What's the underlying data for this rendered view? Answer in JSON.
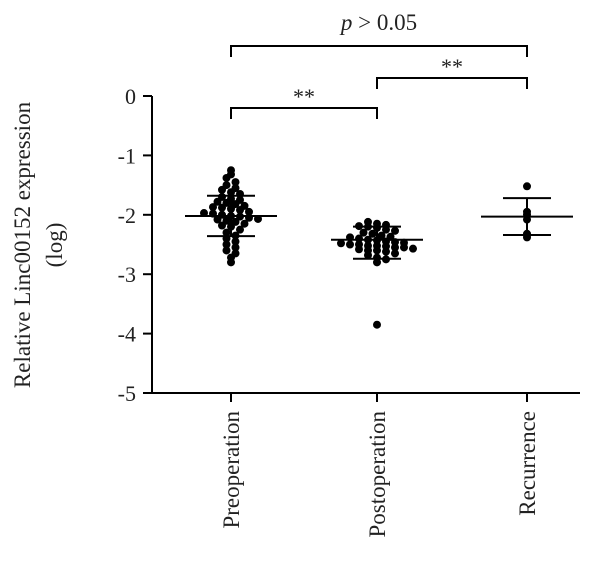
{
  "chart_data": {
    "type": "scatter",
    "ylabel_line1": "Relative Linc00152 expression",
    "ylabel_line2": "(log)",
    "ylim": [
      -5,
      0
    ],
    "yticks": [
      0,
      -1,
      -2,
      -3,
      -4,
      -5
    ],
    "ytick_labels": [
      "0",
      "-1",
      "-2",
      "-3",
      "-4",
      "-5"
    ],
    "categories": [
      "Preoperation",
      "Postoperation",
      "Recurrence"
    ],
    "groups": [
      {
        "category": "Preoperation",
        "mean": -2.02,
        "sd_upper": -1.68,
        "sd_lower": -2.36,
        "points": [
          -1.25,
          -1.32,
          -1.38,
          -1.45,
          -1.5,
          -1.55,
          -1.58,
          -1.62,
          -1.65,
          -1.7,
          -1.73,
          -1.75,
          -1.78,
          -1.8,
          -1.82,
          -1.85,
          -1.87,
          -1.88,
          -1.9,
          -1.92,
          -1.95,
          -1.97,
          -1.98,
          -2.0,
          -2.02,
          -2.03,
          -2.05,
          -2.07,
          -2.08,
          -2.1,
          -2.12,
          -2.15,
          -2.18,
          -2.2,
          -2.25,
          -2.3,
          -2.35,
          -2.4,
          -2.45,
          -2.5,
          -2.55,
          -2.6,
          -2.65,
          -2.72,
          -2.8
        ]
      },
      {
        "category": "Postoperation",
        "mean": -2.42,
        "sd_upper": -2.2,
        "sd_lower": -2.74,
        "points": [
          -2.12,
          -2.15,
          -2.17,
          -2.19,
          -2.2,
          -2.22,
          -2.25,
          -2.27,
          -2.3,
          -2.32,
          -2.35,
          -2.37,
          -2.38,
          -2.4,
          -2.42,
          -2.43,
          -2.45,
          -2.46,
          -2.47,
          -2.48,
          -2.5,
          -2.5,
          -2.52,
          -2.52,
          -2.53,
          -2.55,
          -2.55,
          -2.57,
          -2.58,
          -2.6,
          -2.6,
          -2.62,
          -2.65,
          -2.68,
          -2.72,
          -2.75,
          -2.8,
          -3.85
        ]
      },
      {
        "category": "Recurrence",
        "mean": -2.03,
        "sd_upper": -1.72,
        "sd_lower": -2.34,
        "points": [
          -1.52,
          -1.95,
          -2.0,
          -2.08,
          -2.32,
          -2.38
        ]
      }
    ],
    "annotations": [
      {
        "from": "Preoperation",
        "to": "Recurrence",
        "label_italic": "p",
        "label": " > 0.05"
      },
      {
        "from": "Preoperation",
        "to": "Postoperation",
        "label": "**"
      },
      {
        "from": "Postoperation",
        "to": "Recurrence",
        "label": "**"
      }
    ]
  },
  "colors": {
    "ink": "#000000",
    "text": "#222222"
  }
}
